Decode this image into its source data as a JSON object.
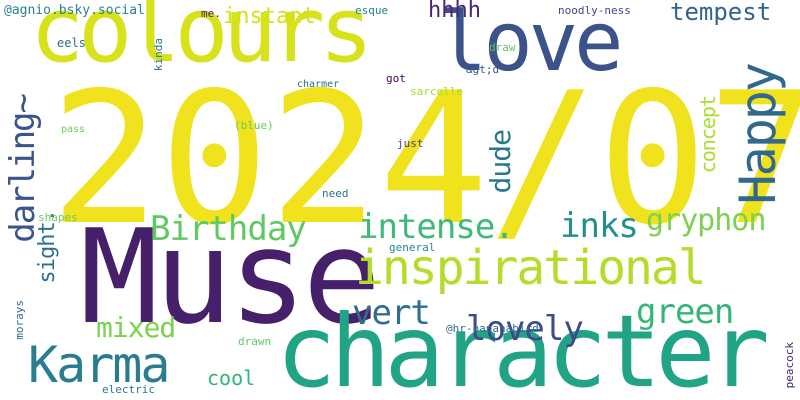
{
  "words": [
    {
      "text": "2024/07",
      "color": "#f0e21c"
    },
    {
      "text": "Muse",
      "color": "#46206a"
    },
    {
      "text": "character",
      "color": "#21a386"
    },
    {
      "text": "colours",
      "color": "#d8e21b"
    },
    {
      "text": "love",
      "color": "#3b528b"
    },
    {
      "text": "inspirational",
      "color": "#b6dc2b"
    },
    {
      "text": "Happy",
      "color": "#31688e"
    },
    {
      "text": "Karma",
      "color": "#2a7d8e"
    },
    {
      "text": "Birthday",
      "color": "#5ec962"
    },
    {
      "text": "intense.",
      "color": "#3bbb75"
    },
    {
      "text": "inks",
      "color": "#218f8d"
    },
    {
      "text": "gryphon",
      "color": "#7cd250"
    },
    {
      "text": "darling~",
      "color": "#3a548c"
    },
    {
      "text": "green",
      "color": "#34b679"
    },
    {
      "text": "lovely",
      "color": "#3e4a89"
    },
    {
      "text": "vert",
      "color": "#2f6c8e"
    },
    {
      "text": "mixed",
      "color": "#7ad151"
    },
    {
      "text": "instant",
      "color": "#d2e21b"
    },
    {
      "text": "tempest",
      "color": "#33638d"
    },
    {
      "text": "dude",
      "color": "#2a788e"
    },
    {
      "text": "sight.",
      "color": "#2e6f8e"
    },
    {
      "text": "concept",
      "color": "#addc30"
    },
    {
      "text": "hhhh",
      "color": "#482677"
    },
    {
      "text": "cool",
      "color": "#2fb47c"
    },
    {
      "text": "@agnio.bsky.social",
      "color": "#26828e"
    },
    {
      "text": "@hr-bananabird",
      "color": "#2f6b8e"
    },
    {
      "text": "me.",
      "color": "#482071"
    },
    {
      "text": "esque",
      "color": "#277f8e"
    },
    {
      "text": "noodly-ness",
      "color": "#3f4889"
    },
    {
      "text": "eels",
      "color": "#2c718e"
    },
    {
      "text": "kinda",
      "color": "#2a778e"
    },
    {
      "text": "draw",
      "color": "#5cc863"
    },
    {
      "text": "&gt;d",
      "color": "#3b528b"
    },
    {
      "text": "got",
      "color": "#450457"
    },
    {
      "text": "charmer",
      "color": "#2e6e8e"
    },
    {
      "text": "sarcelle",
      "color": "#a5db36"
    },
    {
      "text": "(blue)",
      "color": "#60ca60"
    },
    {
      "text": "pass",
      "color": "#6ece58"
    },
    {
      "text": "just",
      "color": "#433e85"
    },
    {
      "text": "need",
      "color": "#2a778e"
    },
    {
      "text": "shapes",
      "color": "#6ccd5a"
    },
    {
      "text": "general",
      "color": "#23888e"
    },
    {
      "text": "morays",
      "color": "#31688e"
    },
    {
      "text": "drawn",
      "color": "#5ec962"
    },
    {
      "text": "electric",
      "color": "#2a788e"
    },
    {
      "text": "peacock",
      "color": "#482475"
    }
  ]
}
